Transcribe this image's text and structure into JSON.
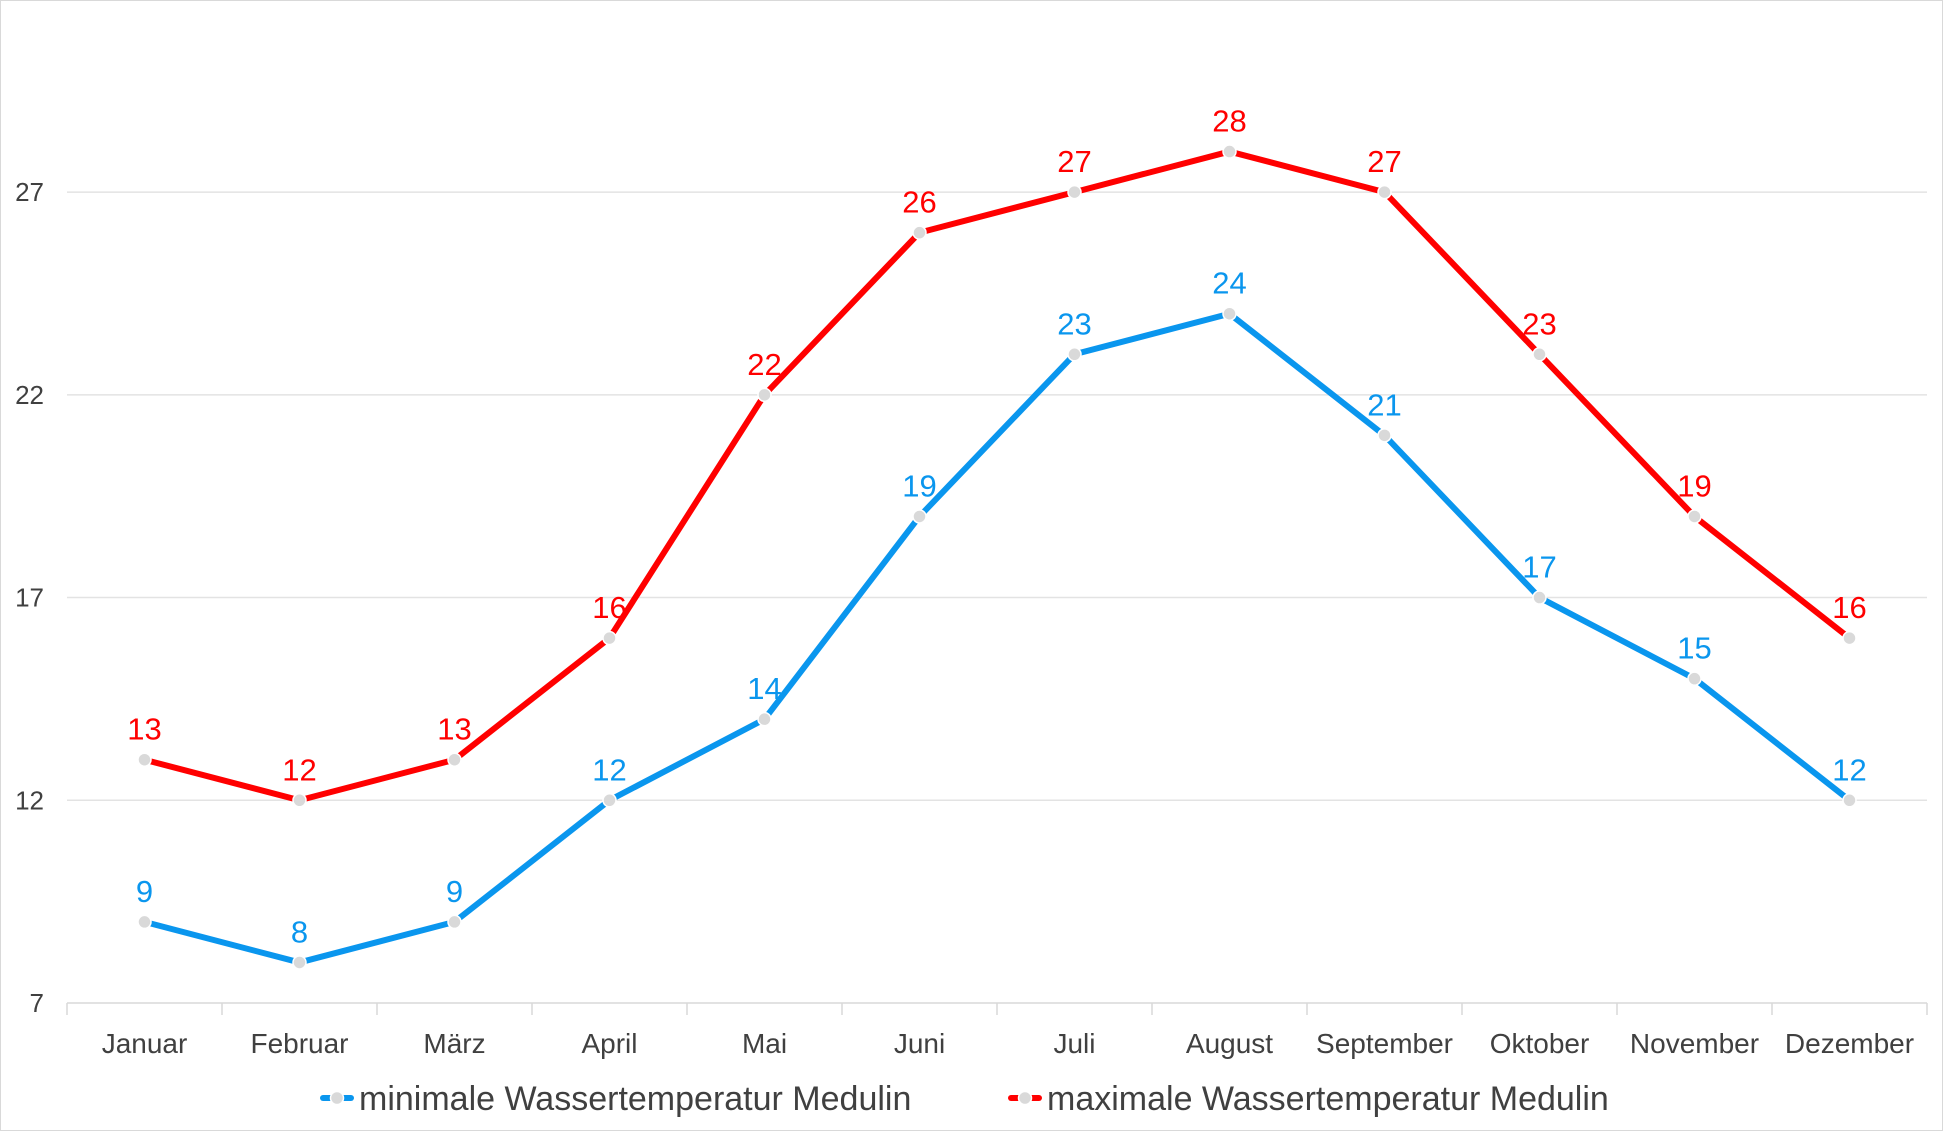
{
  "chart_data": {
    "type": "line",
    "categories": [
      "Januar",
      "Februar",
      "März",
      "April",
      "Mai",
      "Juni",
      "Juli",
      "August",
      "September",
      "Oktober",
      "November",
      "Dezember"
    ],
    "series": [
      {
        "name": "minimale Wassertemperatur Medulin",
        "color": "#0a96ee",
        "values": [
          9,
          8,
          9,
          12,
          14,
          19,
          23,
          24,
          21,
          17,
          15,
          12
        ]
      },
      {
        "name": "maximale Wassertemperatur Medulin",
        "color": "#ff0000",
        "values": [
          13,
          12,
          13,
          16,
          22,
          26,
          27,
          28,
          27,
          23,
          19,
          16
        ]
      }
    ],
    "ylim": [
      7,
      29
    ],
    "yticks": [
      7,
      12,
      17,
      22,
      27
    ],
    "grid": true,
    "legend": "bottom",
    "data_labels": true,
    "marker_color": "#d9d9d9"
  }
}
